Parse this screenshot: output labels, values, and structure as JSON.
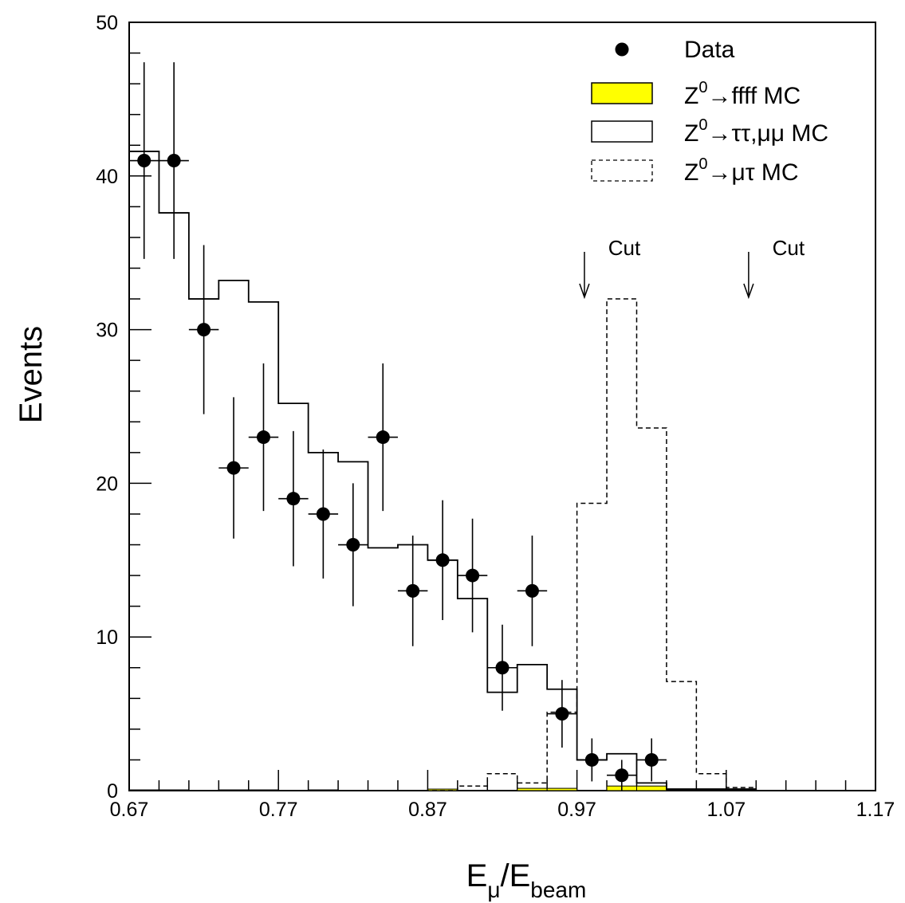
{
  "chart_data": {
    "type": "histogram",
    "xlabel": {
      "main": "E",
      "sub1": "μ",
      "slash": "/E",
      "sub2": "beam"
    },
    "ylabel": "Events",
    "xlim": [
      0.67,
      1.17
    ],
    "ylim": [
      0,
      50
    ],
    "x_ticks": [
      "0.67",
      "0.77",
      "0.87",
      "0.97",
      "1.07",
      "1.17"
    ],
    "y_ticks": [
      "0",
      "10",
      "20",
      "30",
      "40",
      "50"
    ],
    "bin_width": 0.02,
    "bin_edges": [
      0.67,
      0.69,
      0.71,
      0.73,
      0.75,
      0.77,
      0.79,
      0.81,
      0.83,
      0.85,
      0.87,
      0.89,
      0.91,
      0.93,
      0.95,
      0.97,
      0.99,
      1.01,
      1.03,
      1.05,
      1.07,
      1.09,
      1.11,
      1.13,
      1.15,
      1.17
    ],
    "legend": {
      "data": "Data",
      "ffff": {
        "pre": "Z",
        "sup": "0",
        "post": "→ffff MC"
      },
      "tautau": {
        "pre": "Z",
        "sup": "0",
        "post": "→ττ,μμ MC"
      },
      "mutau": {
        "pre": "Z",
        "sup": "0",
        "post": "→μτ MC"
      }
    },
    "cuts": [
      {
        "label": "Cut",
        "x": 0.975
      },
      {
        "label": "Cut",
        "x": 1.085
      }
    ],
    "series": [
      {
        "name": "Data",
        "style": "points",
        "x": [
          0.68,
          0.7,
          0.72,
          0.74,
          0.76,
          0.78,
          0.8,
          0.82,
          0.84,
          0.86,
          0.88,
          0.9,
          0.92,
          0.94,
          0.96,
          0.98,
          1.0,
          1.02
        ],
        "y": [
          41,
          41,
          30,
          21,
          23,
          19,
          18,
          16,
          23,
          13,
          15,
          14,
          8,
          13,
          5,
          2,
          1,
          2
        ],
        "err": [
          6.4,
          6.4,
          5.5,
          4.6,
          4.8,
          4.4,
          4.2,
          4.0,
          4.8,
          3.6,
          3.9,
          3.7,
          2.8,
          3.6,
          2.2,
          1.4,
          1.0,
          1.4
        ]
      },
      {
        "name": "Z0→ττ,μμ MC",
        "style": "histogram",
        "values": [
          41.6,
          37.6,
          32.0,
          33.2,
          31.8,
          25.2,
          22.0,
          21.4,
          15.8,
          16.0,
          15.0,
          12.5,
          6.4,
          8.2,
          6.6,
          2.0,
          2.4,
          0.5,
          0.1,
          0.1,
          0.1,
          0,
          0,
          0,
          0
        ]
      },
      {
        "name": "Z0→μτ MC",
        "style": "histogram-dashed",
        "values": [
          0,
          0,
          0,
          0,
          0,
          0,
          0,
          0,
          0,
          0,
          0,
          0.3,
          1.1,
          0.5,
          5.1,
          18.7,
          32.0,
          23.6,
          7.1,
          1.1,
          0.2,
          0,
          0,
          0,
          0
        ]
      },
      {
        "name": "Z0→ffff MC",
        "style": "histogram-filled",
        "color": "#ffff00",
        "values": [
          0.05,
          0.05,
          0,
          0.05,
          0.05,
          0,
          0.05,
          0,
          0,
          0,
          0.1,
          0,
          0,
          0.15,
          0.15,
          0,
          0.3,
          0.3,
          0,
          0,
          0,
          0,
          0,
          0,
          0
        ]
      }
    ]
  }
}
